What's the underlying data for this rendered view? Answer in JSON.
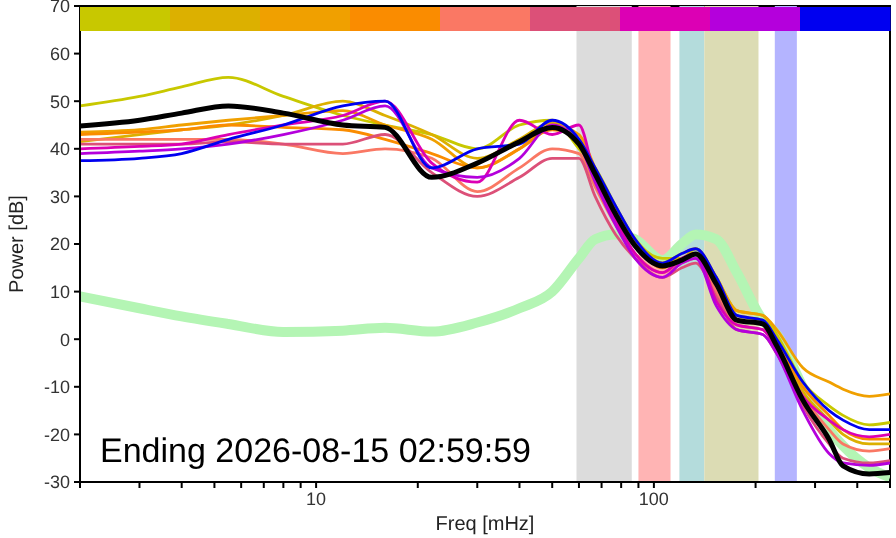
{
  "chart_data": {
    "type": "line",
    "xlabel": "Freq [mHz]",
    "ylabel": "Power [dB]",
    "annotations": [
      "Ending 2026-08-15 02:59:59"
    ],
    "x": [
      2,
      3,
      4,
      5.5,
      8,
      12,
      16,
      22,
      30,
      40,
      50,
      60,
      67,
      77,
      88,
      106,
      121,
      133,
      153,
      176,
      210,
      231,
      276,
      330,
      363,
      434,
      500
    ],
    "series": [
      {
        "color": "#b4f5b4",
        "values": [
          9,
          6.5,
          4.8,
          3.2,
          1.5,
          1.8,
          2.4,
          1.6,
          3.5,
          6.5,
          10,
          17,
          21,
          22,
          21,
          16.6,
          20,
          22,
          21,
          14,
          4,
          1,
          -10,
          -19,
          -22.4,
          -27,
          -29
        ]
      },
      {
        "color": "#c8c800",
        "values": [
          49,
          51,
          53,
          55,
          51,
          47,
          45,
          43,
          40,
          45,
          46,
          40,
          36,
          28,
          21,
          17,
          17,
          19,
          13,
          6,
          5,
          1,
          -9,
          -14,
          -16,
          -18,
          -17.5
        ]
      },
      {
        "color": "#dcb000",
        "values": [
          41.5,
          43,
          44,
          45,
          47,
          50,
          47,
          43,
          38,
          42,
          45.5,
          42,
          35,
          27,
          20,
          16,
          17,
          18,
          12,
          5,
          4,
          0,
          -11,
          -17,
          -20,
          -22,
          -22
        ]
      },
      {
        "color": "#f0a000",
        "values": [
          43.5,
          44,
          45,
          46,
          47,
          48,
          45,
          42,
          36,
          40,
          45,
          43,
          36,
          27,
          21,
          16,
          18,
          19,
          13,
          6,
          5,
          2,
          -6,
          -9,
          -10.5,
          -12,
          -11.5
        ]
      },
      {
        "color": "#fa8c00",
        "values": [
          43,
          43.5,
          44,
          45,
          44.5,
          44,
          42,
          39,
          36,
          40,
          44,
          42,
          35,
          26,
          20,
          15,
          17,
          18,
          12,
          4,
          3,
          -1,
          -10,
          -16,
          -19,
          -21,
          -21
        ]
      },
      {
        "color": "#fa7864",
        "values": [
          42,
          42,
          42,
          42,
          41,
          39,
          40,
          38,
          31,
          36,
          40,
          39,
          32,
          24,
          18,
          14,
          16,
          17,
          10,
          3,
          2,
          -2,
          -12,
          -19,
          -22,
          -23.5,
          -23
        ]
      },
      {
        "color": "#dc5078",
        "values": [
          41,
          41,
          41,
          41.5,
          41,
          41,
          43,
          35,
          30,
          34,
          38,
          38,
          30,
          22,
          17,
          13,
          15,
          16,
          9,
          2,
          1,
          -3,
          -14,
          -22,
          -25,
          -26,
          -25.5
        ]
      },
      {
        "color": "#dc00b4",
        "values": [
          40,
          40.5,
          41,
          43,
          45,
          47,
          50,
          37,
          33,
          46,
          43,
          45,
          34,
          25,
          18,
          14,
          17,
          18,
          8,
          3,
          2,
          -2,
          -12,
          -17,
          -19,
          -20.5,
          -20
        ]
      },
      {
        "color": "#b400dc",
        "values": [
          39,
          39.5,
          40,
          41,
          43,
          46,
          49,
          36,
          34,
          38,
          45,
          41,
          33,
          24,
          17,
          13,
          16,
          17,
          7,
          2,
          1,
          -3,
          -15,
          -24,
          -26,
          -26.5,
          -26
        ]
      },
      {
        "color": "#0000f0",
        "values": [
          37.5,
          38,
          39,
          42,
          45,
          49,
          50,
          36,
          40,
          41,
          46,
          42,
          36,
          28,
          21,
          16,
          18,
          19,
          13,
          5,
          4,
          0,
          -9,
          -15,
          -17,
          -19,
          -19
        ]
      },
      {
        "color": "#000000",
        "values": [
          44.8,
          46,
          47.5,
          49,
          47.5,
          45,
          44.5,
          34,
          37,
          41.5,
          44.5,
          41,
          34.7,
          26.3,
          19.6,
          15.4,
          16.6,
          17.9,
          11.6,
          4,
          3.2,
          -1.4,
          -12.8,
          -21,
          -26.6,
          -28.3,
          -28
        ]
      }
    ],
    "bands": [
      {
        "axis": "x",
        "from": 59,
        "to": 86,
        "color": "#dcdcdc"
      },
      {
        "axis": "x",
        "from": 90,
        "to": 112,
        "color": "#ffb4b4"
      },
      {
        "axis": "x",
        "from": 119,
        "to": 141,
        "color": "#b4dcdc"
      },
      {
        "axis": "x",
        "from": 141,
        "to": 204,
        "color": "#dcdcb4"
      },
      {
        "axis": "x",
        "from": 228,
        "to": 265,
        "color": "#b4b4ff"
      }
    ],
    "log": "x",
    "xlim": [
      2,
      500
    ],
    "xticks": [
      {
        "value": 2,
        "label": null
      },
      {
        "value": 3,
        "label": null
      },
      {
        "value": 4,
        "label": null
      },
      {
        "value": 5,
        "label": null
      },
      {
        "value": 6,
        "label": null
      },
      {
        "value": 7,
        "label": null
      },
      {
        "value": 8,
        "label": null
      },
      {
        "value": 9,
        "label": null
      },
      10,
      {
        "value": 20,
        "label": null
      },
      {
        "value": 30,
        "label": null
      },
      {
        "value": 40,
        "label": null
      },
      {
        "value": 50,
        "label": null
      },
      {
        "value": 60,
        "label": null
      },
      {
        "value": 70,
        "label": null
      },
      {
        "value": 80,
        "label": null
      },
      {
        "value": 90,
        "label": null
      },
      100,
      {
        "value": 200,
        "label": null
      },
      {
        "value": 300,
        "label": null
      },
      {
        "value": 400,
        "label": null
      },
      {
        "value": 500,
        "label": null
      }
    ],
    "ylim": [
      -30,
      70
    ],
    "yticks": [
      -30,
      -20,
      -10,
      0,
      10,
      20,
      30,
      40,
      50,
      60,
      70
    ],
    "marker": "none",
    "line_style": "solid"
  }
}
